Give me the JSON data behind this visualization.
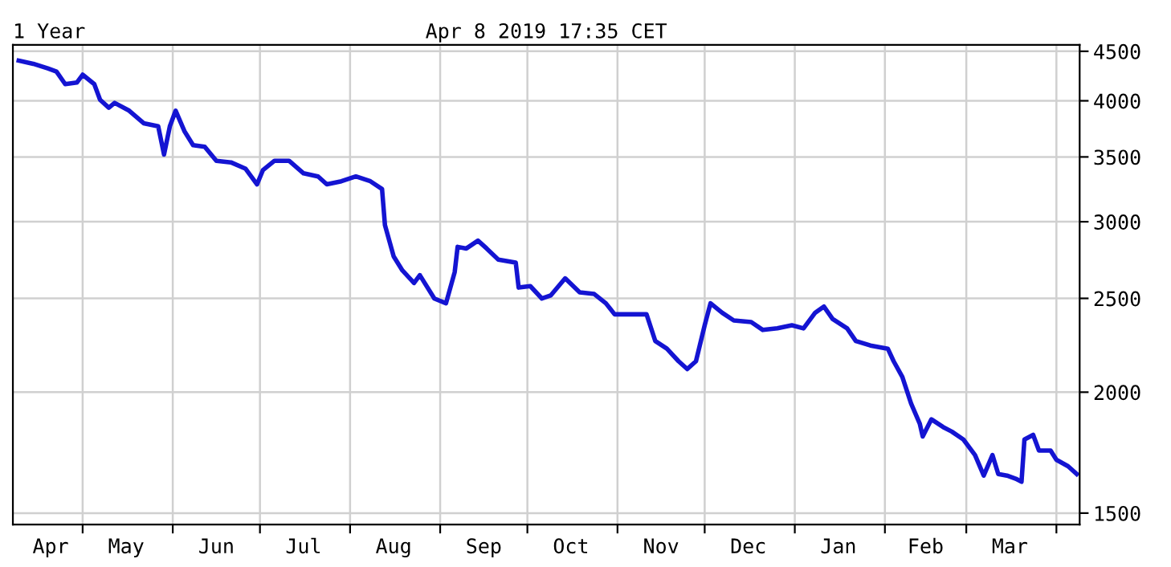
{
  "chart_data": {
    "type": "line",
    "title": "1 Year",
    "subtitle": "Apr 8 2019 17:35 CET",
    "x": [
      "2018-04-09",
      "2018-04-14",
      "2018-04-19",
      "2018-04-22",
      "2018-04-25",
      "2018-04-29",
      "2018-05-01",
      "2018-05-05",
      "2018-05-07",
      "2018-05-10",
      "2018-05-12",
      "2018-05-17",
      "2018-05-22",
      "2018-05-27",
      "2018-05-29",
      "2018-05-31",
      "2018-06-02",
      "2018-06-05",
      "2018-06-08",
      "2018-06-12",
      "2018-06-16",
      "2018-06-21",
      "2018-06-26",
      "2018-06-30",
      "2018-07-02",
      "2018-07-06",
      "2018-07-11",
      "2018-07-16",
      "2018-07-21",
      "2018-07-24",
      "2018-07-29",
      "2018-08-03",
      "2018-08-08",
      "2018-08-12",
      "2018-08-13",
      "2018-08-16",
      "2018-08-19",
      "2018-08-22",
      "2018-08-23",
      "2018-08-25",
      "2018-08-30",
      "2018-09-03",
      "2018-09-06",
      "2018-09-07",
      "2018-09-10",
      "2018-09-14",
      "2018-09-17",
      "2018-09-21",
      "2018-09-27",
      "2018-09-28",
      "2018-10-02",
      "2018-10-06",
      "2018-10-09",
      "2018-10-14",
      "2018-10-19",
      "2018-10-24",
      "2018-10-28",
      "2018-10-31",
      "2018-11-06",
      "2018-11-11",
      "2018-11-14",
      "2018-11-18",
      "2018-11-22",
      "2018-11-25",
      "2018-11-28",
      "2018-12-01",
      "2018-12-03",
      "2018-12-07",
      "2018-12-11",
      "2018-12-17",
      "2018-12-21",
      "2018-12-26",
      "2018-12-31",
      "2019-01-04",
      "2019-01-08",
      "2019-01-11",
      "2019-01-14",
      "2019-01-19",
      "2019-01-22",
      "2019-01-27",
      "2019-02-02",
      "2019-02-04",
      "2019-02-07",
      "2019-02-10",
      "2019-02-13",
      "2019-02-14",
      "2019-02-17",
      "2019-02-21",
      "2019-02-24",
      "2019-02-28",
      "2019-03-04",
      "2019-03-07",
      "2019-03-10",
      "2019-03-12",
      "2019-03-15",
      "2019-03-18",
      "2019-03-20",
      "2019-03-21",
      "2019-03-24",
      "2019-03-26",
      "2019-03-30",
      "2019-04-01",
      "2019-04-05",
      "2019-04-08"
    ],
    "values": [
      4401,
      4368,
      4320,
      4288,
      4162,
      4177,
      4256,
      4162,
      4010,
      3935,
      3980,
      3907,
      3792,
      3764,
      3520,
      3764,
      3907,
      3722,
      3599,
      3586,
      3468,
      3455,
      3404,
      3279,
      3391,
      3468,
      3468,
      3366,
      3341,
      3279,
      3303,
      3341,
      3303,
      3243,
      2976,
      2763,
      2672,
      2613,
      2593,
      2642,
      2499,
      2471,
      2662,
      2826,
      2815,
      2868,
      2815,
      2742,
      2722,
      2565,
      2574,
      2499,
      2517,
      2622,
      2536,
      2526,
      2471,
      2407,
      2407,
      2407,
      2259,
      2218,
      2153,
      2113,
      2153,
      2345,
      2471,
      2416,
      2372,
      2363,
      2319,
      2328,
      2345,
      2328,
      2416,
      2452,
      2381,
      2328,
      2259,
      2235,
      2218,
      2153,
      2074,
      1947,
      1855,
      1800,
      1875,
      1841,
      1821,
      1787,
      1722,
      1640,
      1722,
      1646,
      1640,
      1628,
      1616,
      1787,
      1807,
      1741,
      1741,
      1703,
      1677,
      1646
    ],
    "color": "#1414d2",
    "xlim": [
      "2018-04-07",
      "2019-04-09"
    ],
    "xticks": [
      {
        "value": "2018-04-20",
        "label": "Apr"
      },
      {
        "value": "2018-05-01",
        "label": null
      },
      {
        "value": "2018-05-16",
        "label": "May"
      },
      {
        "value": "2018-06-01",
        "label": null
      },
      {
        "value": "2018-06-16",
        "label": "Jun"
      },
      {
        "value": "2018-07-01",
        "label": null
      },
      {
        "value": "2018-07-16",
        "label": "Jul"
      },
      {
        "value": "2018-08-01",
        "label": null
      },
      {
        "value": "2018-08-16",
        "label": "Aug"
      },
      {
        "value": "2018-09-01",
        "label": null
      },
      {
        "value": "2018-09-16",
        "label": "Sep"
      },
      {
        "value": "2018-10-01",
        "label": null
      },
      {
        "value": "2018-10-16",
        "label": "Oct"
      },
      {
        "value": "2018-11-01",
        "label": null
      },
      {
        "value": "2018-11-16",
        "label": "Nov"
      },
      {
        "value": "2018-12-01",
        "label": null
      },
      {
        "value": "2018-12-16",
        "label": "Dec"
      },
      {
        "value": "2019-01-01",
        "label": null
      },
      {
        "value": "2019-01-16",
        "label": "Jan"
      },
      {
        "value": "2019-02-01",
        "label": null
      },
      {
        "value": "2019-02-15",
        "label": "Feb"
      },
      {
        "value": "2019-03-01",
        "label": null
      },
      {
        "value": "2019-03-16",
        "label": "Mar"
      },
      {
        "value": "2019-04-01",
        "label": null
      }
    ],
    "ylim": [
      1460,
      4570
    ],
    "yticks": [
      1500,
      2000,
      2500,
      3000,
      3500,
      4000,
      4500
    ],
    "log": "y",
    "grid": true
  }
}
